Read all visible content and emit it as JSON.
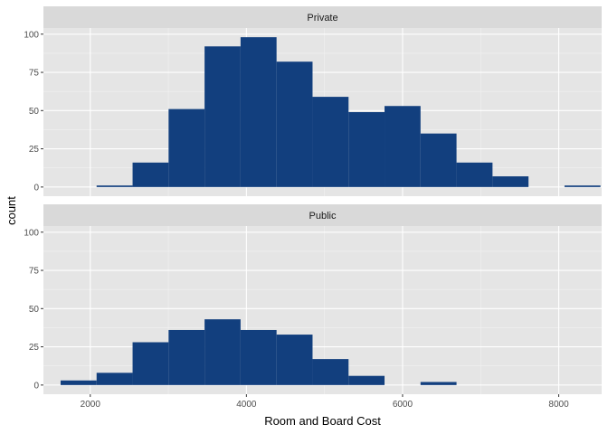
{
  "chart_data": {
    "type": "histogram",
    "xlabel": "Room and Board Cost",
    "ylabel": "count",
    "bin_width": 461,
    "bin_starts": [
      1620,
      2081,
      2542,
      3003,
      3464,
      3925,
      4386,
      4847,
      5308,
      5769,
      6230,
      6691,
      7152,
      7613,
      8074
    ],
    "xlim": [
      1400,
      8550
    ],
    "ylim": [
      -6,
      104
    ],
    "x_ticks": [
      2000,
      4000,
      6000,
      8000
    ],
    "x_tick_labels": [
      "2000",
      "4000",
      "6000",
      "8000"
    ],
    "y_ticks": [
      0,
      25,
      50,
      75,
      100
    ],
    "y_tick_labels": [
      "0",
      "25",
      "50",
      "75",
      "100"
    ],
    "grid": true,
    "fill_color": "#123f7e",
    "panel_background": "#e5e5e5",
    "strip_background": "#d9d9d9",
    "panels": [
      {
        "label": "Private",
        "counts": [
          0,
          1,
          16,
          51,
          92,
          98,
          82,
          59,
          49,
          53,
          35,
          16,
          7,
          0,
          1
        ]
      },
      {
        "label": "Public",
        "counts": [
          3,
          8,
          28,
          36,
          43,
          36,
          33,
          17,
          6,
          0,
          2,
          0,
          0,
          0,
          0
        ]
      }
    ]
  }
}
